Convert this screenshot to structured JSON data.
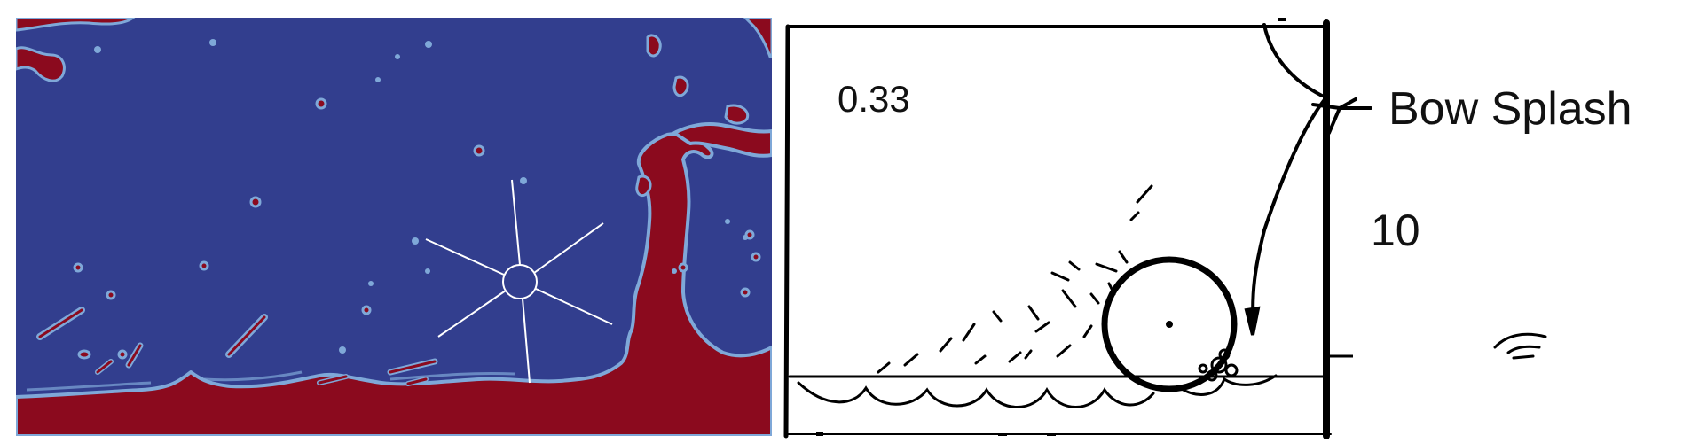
{
  "left_panel": {
    "colors": {
      "water": "#8B0A1E",
      "air": "#323E8E",
      "interface": "#7FA8D8",
      "overlay": "#FFFFFF"
    }
  },
  "right_panel": {
    "time_label": "0.33",
    "annotation_label": "Bow Splash",
    "scale_label": "10",
    "colors": {
      "ink": "#000000",
      "paper": "#FFFFFF"
    }
  }
}
